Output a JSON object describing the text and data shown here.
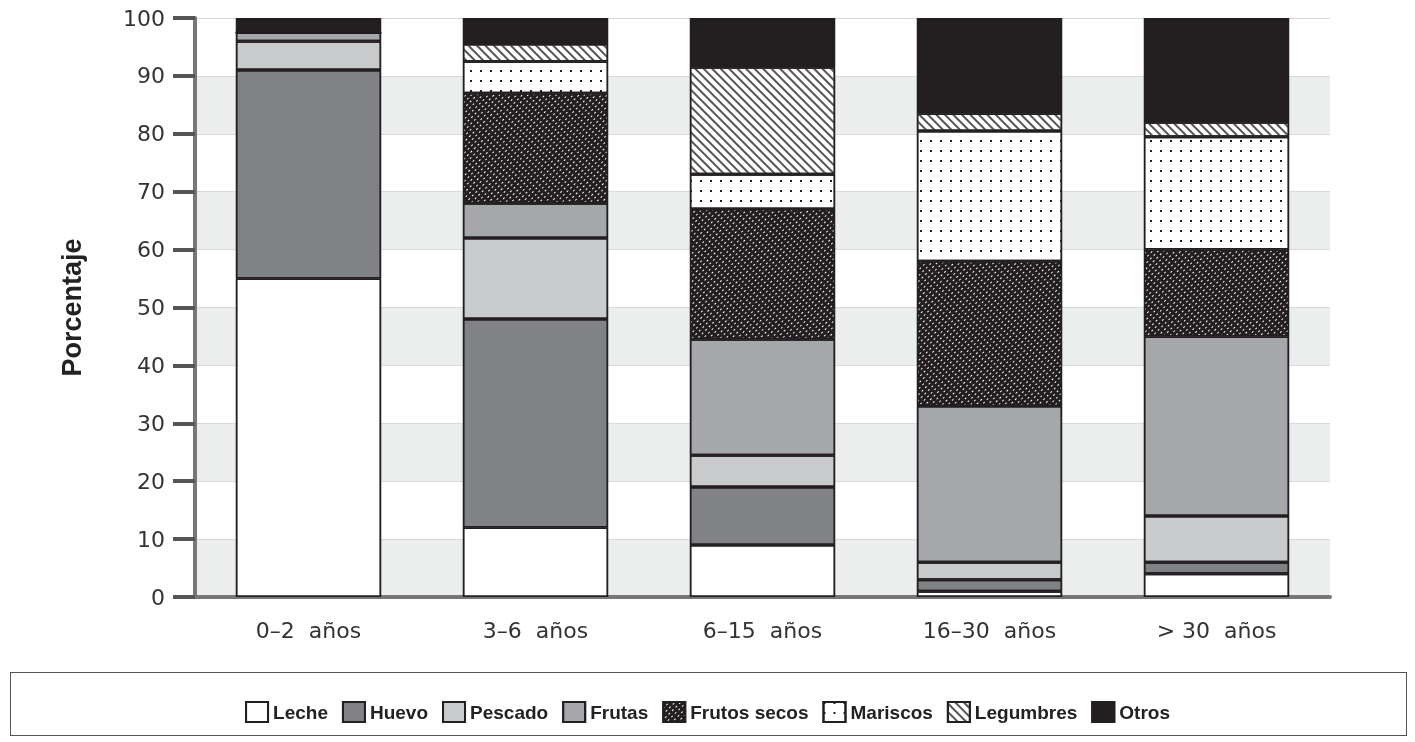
{
  "chart_data": {
    "type": "bar",
    "stacked": true,
    "ylabel": "Porcentaje",
    "categories": [
      "0–2  años",
      "3–6  años",
      "6–15  años",
      "16–30  años",
      "> 30  años"
    ],
    "ylim": [
      0,
      100
    ],
    "yticks": [
      0,
      10,
      20,
      30,
      40,
      50,
      60,
      70,
      80,
      90,
      100
    ],
    "grid": "y",
    "legend": "bottom",
    "series": [
      {
        "name": "Leche",
        "color": "#ffffff",
        "values": [
          55,
          12,
          9,
          1,
          4
        ]
      },
      {
        "name": "Huevo",
        "color": "#808285",
        "values": [
          36,
          36,
          10,
          2,
          2
        ]
      },
      {
        "name": "Pescado",
        "color": "#c9cacc",
        "values": [
          5,
          14,
          5.5,
          3,
          8
        ]
      },
      {
        "name": "Frutas",
        "color": "#a6a7aa",
        "values": [
          1.5,
          6,
          20,
          27,
          31
        ]
      },
      {
        "name": "Frutos secos",
        "color": "#231f20",
        "values": [
          0,
          19,
          22.5,
          25,
          15
        ]
      },
      {
        "name": "Mariscos",
        "color": "#ffffff",
        "values": [
          0,
          5.5,
          6,
          22.5,
          19.5
        ]
      },
      {
        "name": "Legumbres",
        "color": "#ffffff",
        "values": [
          0,
          3,
          18.5,
          3,
          2.5
        ]
      },
      {
        "name": "Otros",
        "color": "#231f20",
        "values": [
          2.5,
          4.5,
          8.5,
          16.5,
          18
        ]
      }
    ]
  }
}
